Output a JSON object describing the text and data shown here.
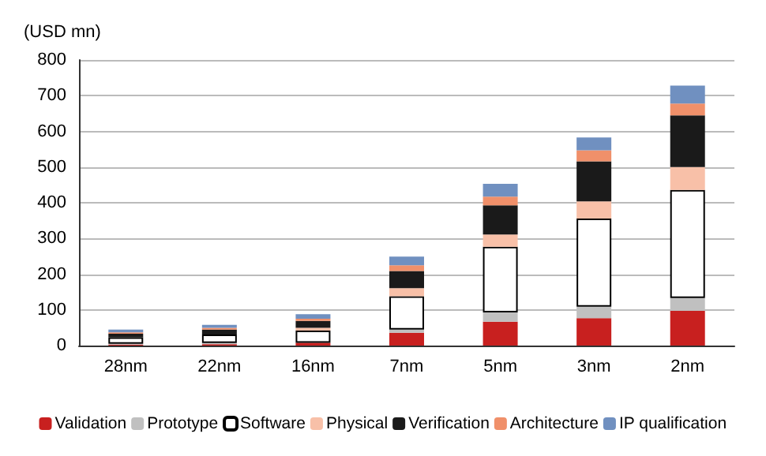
{
  "chart_data": {
    "type": "bar",
    "stacked": true,
    "ylabel": "(USD mn)",
    "categories": [
      "28nm",
      "22nm",
      "16nm",
      "7nm",
      "5nm",
      "3nm",
      "2nm"
    ],
    "series": [
      {
        "name": "Validation",
        "color": "#c8201f",
        "values": [
          3,
          4,
          8,
          36,
          67,
          77,
          97
        ]
      },
      {
        "name": "Prototype",
        "color": "#c0c0c0",
        "values": [
          2,
          3,
          null,
          9,
          26,
          32,
          36
        ]
      },
      {
        "name": "Software",
        "color": "#ffffff",
        "values": [
          18,
          24,
          34,
          93,
          184,
          247,
          303
        ]
      },
      {
        "name": "Physical",
        "color": "#f8c0a8",
        "values": [
          null,
          null,
          8,
          23,
          34,
          48,
          64
        ]
      },
      {
        "name": "Verification",
        "color": "#1a1a1a",
        "values": [
          10,
          14,
          19,
          48,
          82,
          112,
          145
        ]
      },
      {
        "name": "Architecture",
        "color": "#f0906a",
        "values": [
          4,
          5,
          6,
          16,
          24,
          31,
          33
        ]
      },
      {
        "name": "IP qualification",
        "color": "#7090c0",
        "values": [
          8,
          8,
          13,
          24,
          36,
          36,
          50
        ]
      }
    ],
    "ylim": [
      0,
      800
    ],
    "yticks": [
      0,
      100,
      200,
      300,
      400,
      500,
      600,
      700,
      800
    ],
    "grid": "y",
    "legend": "bottom"
  }
}
